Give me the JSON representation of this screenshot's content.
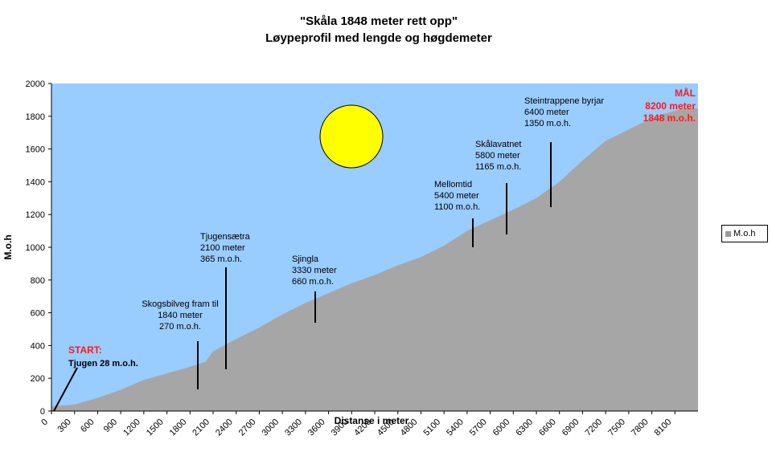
{
  "chart_data": {
    "type": "area",
    "title": "\"Skåla 1848 meter rett opp\"",
    "subtitle": "Løypeprofil med lengde og høgdemeter",
    "xlabel": "Distanse i meter",
    "ylabel": "M.o.h",
    "xlim": [
      0,
      8400
    ],
    "ylim": [
      0,
      2000
    ],
    "yticks": [
      0,
      200,
      400,
      600,
      800,
      1000,
      1200,
      1400,
      1600,
      1800,
      2000
    ],
    "xticks": [
      0,
      300,
      600,
      900,
      1200,
      1500,
      1800,
      2100,
      2400,
      2700,
      3000,
      3300,
      3600,
      3900,
      4200,
      4500,
      4800,
      5100,
      5400,
      5700,
      6000,
      6300,
      6600,
      6900,
      7200,
      7500,
      7800,
      8100
    ],
    "legend_position": "right",
    "series": [
      {
        "name": "M.o.h",
        "color": "#a6a6a6",
        "x": [
          0,
          300,
          600,
          900,
          1200,
          1500,
          1800,
          2000,
          2100,
          2400,
          2700,
          3000,
          3300,
          3600,
          3900,
          4200,
          4500,
          4800,
          5100,
          5400,
          5700,
          6000,
          6300,
          6600,
          6900,
          7200,
          7500,
          7800,
          8000,
          8200,
          8400
        ],
        "y": [
          28,
          40,
          80,
          130,
          190,
          230,
          270,
          300,
          365,
          440,
          510,
          590,
          660,
          720,
          780,
          830,
          890,
          940,
          1010,
          1100,
          1165,
          1230,
          1300,
          1400,
          1530,
          1650,
          1720,
          1790,
          1820,
          1848,
          1848
        ]
      }
    ],
    "annotations": [
      {
        "name": "start",
        "heading": "START:",
        "lines": [
          "Tjugen 28 m.o.h."
        ]
      },
      {
        "name": "skogsbilveg",
        "lines": [
          "Skogsbilveg fram til",
          "1840 meter",
          "270 m.o.h."
        ]
      },
      {
        "name": "tjugensaetra",
        "lines": [
          "Tjugensætra",
          "2100 meter",
          "365 m.o.h."
        ]
      },
      {
        "name": "sjingla",
        "lines": [
          "Sjingla",
          "3330 meter",
          "660 m.o.h."
        ]
      },
      {
        "name": "mellomtid",
        "lines": [
          "Mellomtid",
          "5400 meter",
          "1100 m.o.h."
        ]
      },
      {
        "name": "skalavatnet",
        "lines": [
          "Skålavatnet",
          "5800 meter",
          "1165 m.o.h."
        ]
      },
      {
        "name": "steintrappene",
        "lines": [
          "Steintrappene byrjar",
          "6400 meter",
          "1350 m.o.h."
        ]
      },
      {
        "name": "maal",
        "heading": "MÅL",
        "lines": [
          "8200 meter",
          "1848 m.o.h."
        ]
      }
    ],
    "colors": {
      "plot_background": "#99ccff",
      "area": "#a6a6a6",
      "sun": "#ffff00",
      "highlight": "#ff1a1a"
    }
  }
}
